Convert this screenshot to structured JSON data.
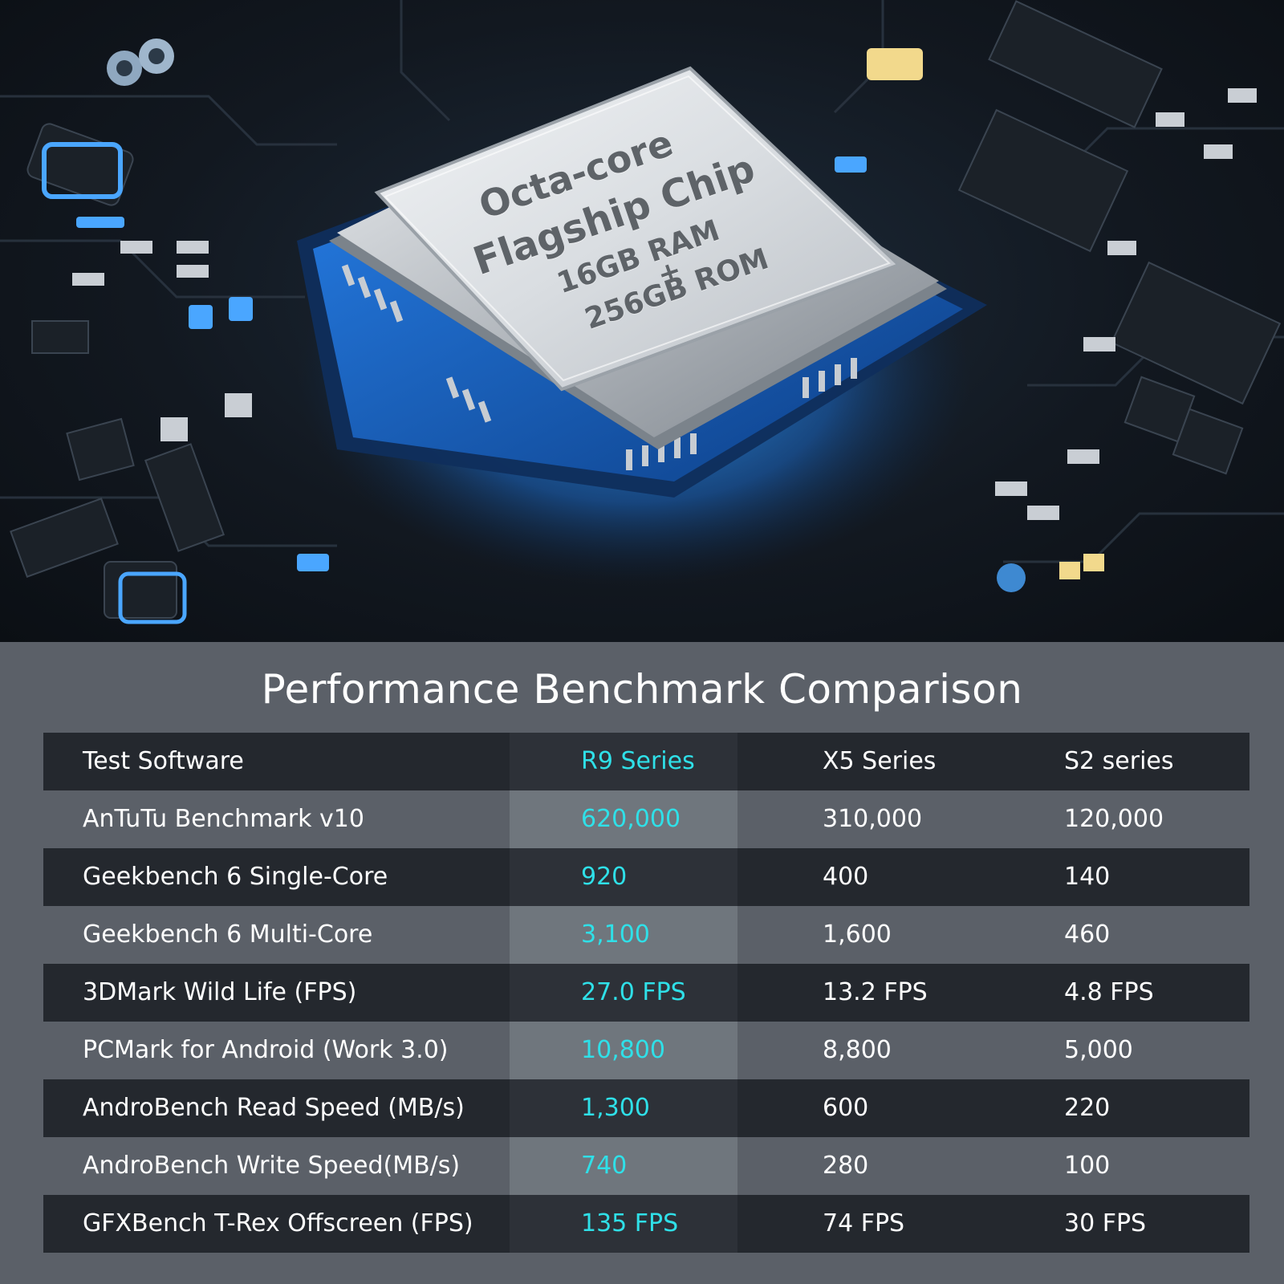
{
  "hero": {
    "chip_lines": [
      "Octa-core",
      "Flagship Chip",
      "16GB RAM",
      "+",
      "256GB ROM"
    ]
  },
  "title": "Performance Benchmark Comparison",
  "table": {
    "headers": [
      "Test Software",
      "R9 Series",
      "X5 Series",
      "S2 series"
    ],
    "rows": [
      [
        "AnTuTu Benchmark v10",
        "620,000",
        "310,000",
        "120,000"
      ],
      [
        "Geekbench 6 Single-Core",
        "920",
        "400",
        "140"
      ],
      [
        "Geekbench 6 Multi-Core",
        "3,100",
        "1,600",
        "460"
      ],
      [
        "3DMark Wild Life (FPS)",
        "27.0 FPS",
        "13.2 FPS",
        "4.8 FPS"
      ],
      [
        "PCMark for Android (Work 3.0)",
        "10,800",
        "8,800",
        "5,000"
      ],
      [
        "AndroBench Read Speed (MB/s)",
        "1,300",
        "600",
        "220"
      ],
      [
        "AndroBench Write Speed(MB/s)",
        "740",
        "280",
        "100"
      ],
      [
        "GFXBench T-Rex Offscreen (FPS)",
        "135 FPS",
        "74 FPS",
        "30 FPS"
      ]
    ]
  },
  "colors": {
    "highlight": "#2fe0e8",
    "panel_bg": "#5b6068",
    "row_dark": "#24282e"
  }
}
